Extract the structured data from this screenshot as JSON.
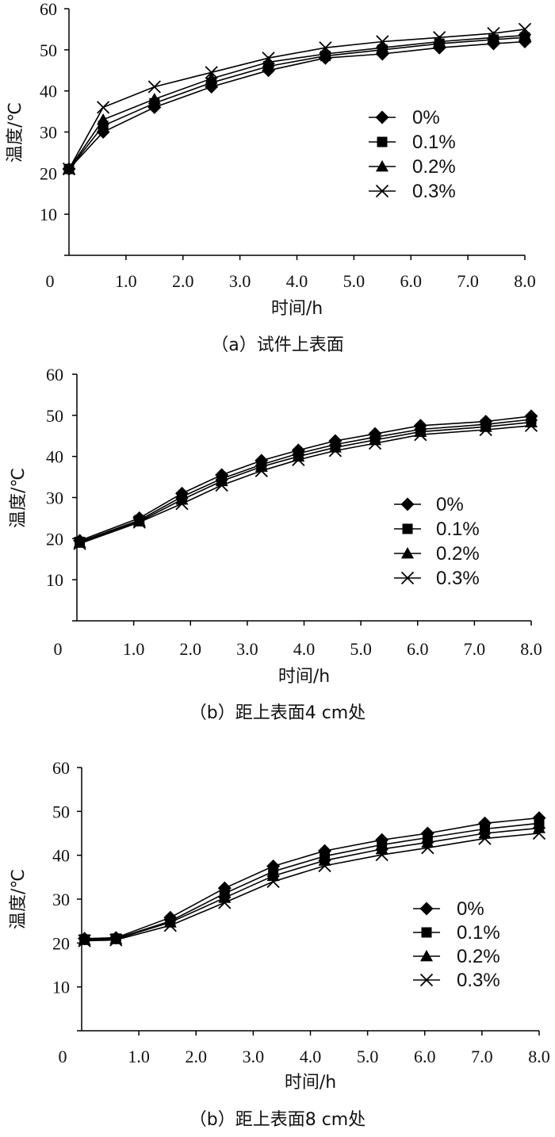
{
  "figure": {
    "marker_names": [
      "diamond-marker",
      "square-marker",
      "triangle-marker",
      "x-marker"
    ]
  },
  "chart_data": [
    {
      "type": "line",
      "caption": "（a）试件上表面",
      "xlabel": "时间/h",
      "ylabel": "温度/℃",
      "xlim": [
        0,
        8
      ],
      "ylim": [
        0,
        60
      ],
      "x_ticks": [
        "0",
        "1.0",
        "2.0",
        "3.0",
        "4.0",
        "5.0",
        "6.0",
        "7.0",
        "8.0"
      ],
      "y_ticks": [
        "10",
        "20",
        "30",
        "40",
        "50",
        "60"
      ],
      "legend_position": "right",
      "series": [
        {
          "name": "0%",
          "marker": "diamond",
          "points": [
            [
              0.0,
              21
            ],
            [
              0.6,
              30
            ],
            [
              1.5,
              36
            ],
            [
              2.5,
              41
            ],
            [
              3.5,
              45
            ],
            [
              4.5,
              48
            ],
            [
              5.5,
              49
            ],
            [
              6.5,
              50.5
            ],
            [
              7.45,
              51.5
            ],
            [
              8.0,
              52
            ]
          ]
        },
        {
          "name": "0.1%",
          "marker": "square",
          "points": [
            [
              0.0,
              21
            ],
            [
              0.6,
              31.5
            ],
            [
              1.5,
              37
            ],
            [
              2.5,
              42
            ],
            [
              3.5,
              46
            ],
            [
              4.5,
              48.5
            ],
            [
              5.5,
              50
            ],
            [
              6.5,
              51.5
            ],
            [
              7.45,
              52.5
            ],
            [
              8.0,
              53
            ]
          ]
        },
        {
          "name": "0.2%",
          "marker": "triangle",
          "points": [
            [
              0.0,
              21
            ],
            [
              0.6,
              33
            ],
            [
              1.5,
              38
            ],
            [
              2.5,
              43
            ],
            [
              3.5,
              47
            ],
            [
              4.5,
              49
            ],
            [
              5.5,
              50.5
            ],
            [
              6.5,
              52
            ],
            [
              7.45,
              53
            ],
            [
              8.0,
              53.5
            ]
          ]
        },
        {
          "name": "0.3%",
          "marker": "x",
          "points": [
            [
              0.0,
              21
            ],
            [
              0.6,
              36
            ],
            [
              1.5,
              41
            ],
            [
              2.5,
              44.5
            ],
            [
              3.5,
              48
            ],
            [
              4.5,
              50.5
            ],
            [
              5.5,
              52
            ],
            [
              6.5,
              53
            ],
            [
              7.45,
              54
            ],
            [
              8.0,
              55
            ]
          ]
        }
      ]
    },
    {
      "type": "line",
      "caption": "（b）距上表面4 cm处",
      "xlabel": "时间/h",
      "ylabel": "温度/℃",
      "xlim": [
        0,
        8
      ],
      "ylim": [
        0,
        60
      ],
      "x_ticks": [
        "0",
        "1.0",
        "2.0",
        "3.0",
        "4.0",
        "5.0",
        "6.0",
        "7.0",
        "8.0"
      ],
      "y_ticks": [
        "10",
        "20",
        "30",
        "40",
        "50",
        "60"
      ],
      "legend_position": "right",
      "series": [
        {
          "name": "0%",
          "marker": "diamond",
          "points": [
            [
              0.05,
              19.5
            ],
            [
              1.1,
              25
            ],
            [
              1.85,
              31
            ],
            [
              2.55,
              35.5
            ],
            [
              3.25,
              39
            ],
            [
              3.9,
              41.5
            ],
            [
              4.55,
              43.8
            ],
            [
              5.25,
              45.5
            ],
            [
              6.05,
              47.5
            ],
            [
              7.2,
              48.5
            ],
            [
              8.0,
              49.8
            ]
          ]
        },
        {
          "name": "0.1%",
          "marker": "square",
          "points": [
            [
              0.05,
              19.2
            ],
            [
              1.1,
              24.5
            ],
            [
              1.85,
              30.2
            ],
            [
              2.55,
              34.6
            ],
            [
              3.25,
              38
            ],
            [
              3.9,
              40.7
            ],
            [
              4.55,
              42.9
            ],
            [
              5.25,
              44.7
            ],
            [
              6.05,
              46.6
            ],
            [
              7.2,
              47.8
            ],
            [
              8.0,
              49
            ]
          ]
        },
        {
          "name": "0.2%",
          "marker": "triangle",
          "points": [
            [
              0.05,
              19
            ],
            [
              1.1,
              24.2
            ],
            [
              1.85,
              29.5
            ],
            [
              2.55,
              34
            ],
            [
              3.25,
              37.5
            ],
            [
              3.9,
              40
            ],
            [
              4.55,
              42.2
            ],
            [
              5.25,
              44
            ],
            [
              6.05,
              46
            ],
            [
              7.2,
              47.2
            ],
            [
              8.0,
              48.3
            ]
          ]
        },
        {
          "name": "0.3%",
          "marker": "x",
          "points": [
            [
              0.05,
              18.8
            ],
            [
              1.1,
              24
            ],
            [
              1.85,
              28.5
            ],
            [
              2.55,
              33
            ],
            [
              3.25,
              36.5
            ],
            [
              3.9,
              39.2
            ],
            [
              4.55,
              41.4
            ],
            [
              5.25,
              43.2
            ],
            [
              6.05,
              45.3
            ],
            [
              7.2,
              46.5
            ],
            [
              8.0,
              47.5
            ]
          ]
        }
      ]
    },
    {
      "type": "line",
      "caption": "（b）距上表面8 cm处",
      "xlabel": "时间/h",
      "ylabel": "温度/℃",
      "xlim": [
        0,
        8
      ],
      "ylim": [
        0,
        60
      ],
      "x_ticks": [
        "0",
        "1.0",
        "2.0",
        "3.0",
        "4.0",
        "5.0",
        "6.0",
        "7.0",
        "8.0"
      ],
      "y_ticks": [
        "10",
        "20",
        "30",
        "40",
        "50",
        "60"
      ],
      "legend_position": "right",
      "series": [
        {
          "name": "0%",
          "marker": "diamond",
          "points": [
            [
              0.05,
              21
            ],
            [
              0.6,
              21.2
            ],
            [
              1.55,
              25.8
            ],
            [
              2.5,
              32.5
            ],
            [
              3.35,
              37.5
            ],
            [
              4.25,
              41
            ],
            [
              5.25,
              43.5
            ],
            [
              6.05,
              45
            ],
            [
              7.05,
              47.3
            ],
            [
              8.0,
              48.5
            ]
          ]
        },
        {
          "name": "0.1%",
          "marker": "square",
          "points": [
            [
              0.05,
              20.8
            ],
            [
              0.6,
              21
            ],
            [
              1.55,
              25
            ],
            [
              2.5,
              31.3
            ],
            [
              3.35,
              36.3
            ],
            [
              4.25,
              39.8
            ],
            [
              5.25,
              42.4
            ],
            [
              6.05,
              44
            ],
            [
              7.05,
              46
            ],
            [
              8.0,
              47.3
            ]
          ]
        },
        {
          "name": "0.2%",
          "marker": "triangle",
          "points": [
            [
              0.05,
              20.7
            ],
            [
              0.6,
              20.9
            ],
            [
              1.55,
              24.7
            ],
            [
              2.5,
              30.3
            ],
            [
              3.35,
              35.3
            ],
            [
              4.25,
              38.8
            ],
            [
              5.25,
              41.4
            ],
            [
              6.05,
              42.9
            ],
            [
              7.05,
              45
            ],
            [
              8.0,
              46.2
            ]
          ]
        },
        {
          "name": "0.3%",
          "marker": "x",
          "points": [
            [
              0.05,
              20.5
            ],
            [
              0.6,
              20.7
            ],
            [
              1.55,
              24
            ],
            [
              2.5,
              29.2
            ],
            [
              3.35,
              34
            ],
            [
              4.25,
              37.6
            ],
            [
              5.25,
              40.1
            ],
            [
              6.05,
              41.7
            ],
            [
              7.05,
              43.8
            ],
            [
              8.0,
              45
            ]
          ]
        }
      ]
    }
  ]
}
